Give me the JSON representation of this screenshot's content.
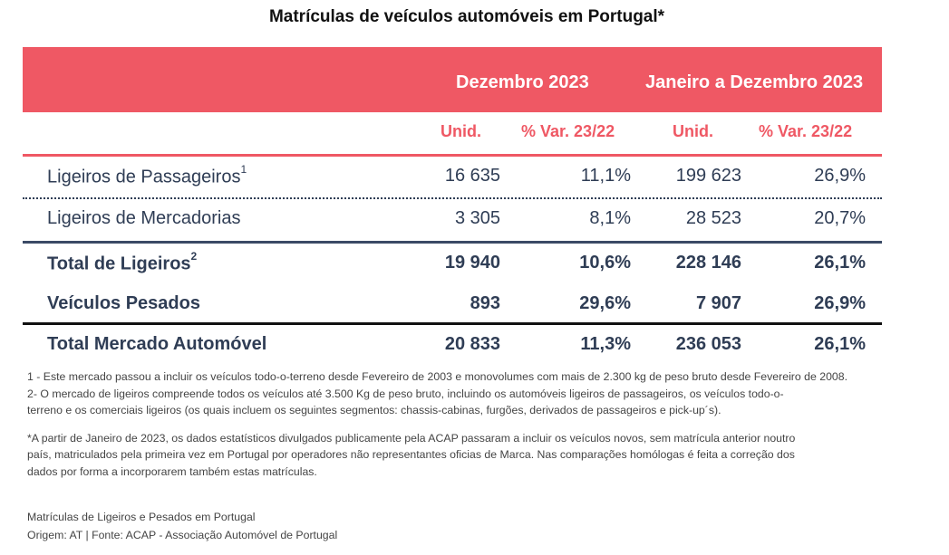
{
  "title": "Matrículas de veículos automóveis em Portugal*",
  "table": {
    "groups": [
      "Dezembro 2023",
      "Janeiro a Dezembro 2023"
    ],
    "subheaders": [
      "Unid.",
      "% Var. 23/22",
      "Unid.",
      "% Var. 23/22"
    ],
    "rows": [
      {
        "label": "Ligeiros de Passageiros",
        "sup": "1",
        "values": [
          "16 635",
          "11,1%",
          "199 623",
          "26,9%"
        ]
      },
      {
        "label": "Ligeiros de Mercadorias",
        "sup": "",
        "values": [
          "3 305",
          "8,1%",
          "28 523",
          "20,7%"
        ]
      },
      {
        "label": "Total de Ligeiros",
        "sup": "2",
        "values": [
          "19 940",
          "10,6%",
          "228 146",
          "26,1%"
        ]
      },
      {
        "label": "Veículos Pesados",
        "sup": "",
        "values": [
          "893",
          "29,6%",
          "7 907",
          "26,9%"
        ]
      },
      {
        "label": "Total Mercado Automóvel",
        "sup": "",
        "values": [
          "20 833",
          "11,3%",
          "236 053",
          "26,1%"
        ]
      }
    ]
  },
  "notes": {
    "note1": "1 - Este mercado passou a incluir os veículos todo-o-terreno desde Fevereiro de 2003 e monovolumes com mais de 2.300 kg de peso bruto desde Fevereiro de 2008.",
    "note2a": "2- O mercado de ligeiros compreende todos os veículos até 3.500 Kg de peso bruto, incluindo os automóveis ligeiros de passageiros, os veículos todo-o-",
    "note2b": "terreno e os comerciais ligeiros (os quais incluem os seguintes segmentos: chassis-cabinas, furgões, derivados de passageiros e pick-up´s).",
    "star1": "*A partir de Janeiro de 2023, os dados estatísticos divulgados publicamente pela ACAP passaram a incluir os veículos novos, sem matrícula anterior noutro",
    "star2": "país, matriculados pela primeira vez em Portugal por operadores não representantes oficias de Marca. Nas comparações homólogas é feita a correção dos",
    "star3": "dados por forma a incorporarem também estas matrículas."
  },
  "source": {
    "line1": "Matrículas de Ligeiros e Pesados em Portugal",
    "line2": "Origem: AT | Fonte: ACAP - Associação Automóvel de Portugal"
  },
  "colors": {
    "accent": "#ef5864",
    "text": "#2f3d55"
  }
}
